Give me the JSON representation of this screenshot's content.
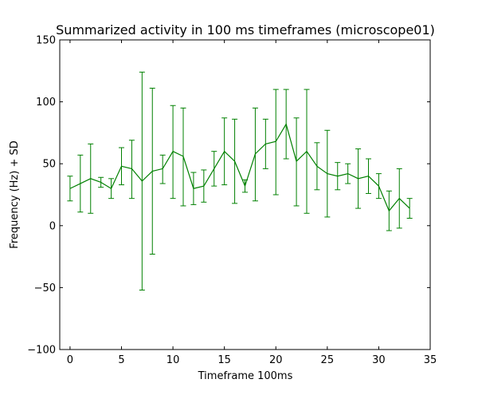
{
  "chart_data": {
    "type": "line",
    "title": "Summarized activity in 100 ms timeframes (microscope01)",
    "xlabel": "Timeframe 100ms",
    "ylabel": "Frequency (Hz) + SD",
    "xlim": [
      -1,
      35
    ],
    "ylim": [
      -100,
      150
    ],
    "xticks": [
      0,
      5,
      10,
      15,
      20,
      25,
      30,
      35
    ],
    "yticks": [
      -100,
      -50,
      0,
      50,
      100,
      150
    ],
    "xtick_labels": [
      "0",
      "5",
      "10",
      "15",
      "20",
      "25",
      "30",
      "35"
    ],
    "ytick_labels": [
      "−100",
      "−50",
      "0",
      "50",
      "100",
      "150"
    ],
    "grid": false,
    "legend": "none",
    "series": [
      {
        "color": "#008000",
        "x": [
          0,
          1,
          2,
          3,
          4,
          5,
          6,
          7,
          8,
          9,
          10,
          11,
          12,
          13,
          14,
          15,
          16,
          17,
          18,
          19,
          20,
          21,
          22,
          23,
          24,
          25,
          26,
          27,
          28,
          29,
          30,
          31,
          32,
          33
        ],
        "y": [
          30,
          34,
          38,
          35,
          30,
          48,
          46,
          36,
          44,
          46,
          60,
          56,
          30,
          32,
          46,
          60,
          52,
          32,
          58,
          66,
          68,
          82,
          52,
          60,
          48,
          42,
          40,
          42,
          38,
          40,
          32,
          12,
          22,
          14
        ],
        "yerr_upper": [
          40,
          57,
          66,
          39,
          38,
          63,
          69,
          124,
          111,
          57,
          97,
          95,
          43,
          45,
          60,
          87,
          86,
          37,
          95,
          86,
          110,
          110,
          87,
          110,
          67,
          77,
          51,
          50,
          62,
          54,
          42,
          28,
          46,
          22
        ],
        "yerr_lower": [
          20,
          11,
          10,
          31,
          22,
          33,
          22,
          -52,
          -23,
          34,
          22,
          16,
          17,
          19,
          32,
          33,
          18,
          27,
          20,
          46,
          25,
          54,
          16,
          10,
          29,
          7,
          29,
          34,
          14,
          26,
          22,
          -4,
          -2,
          6
        ]
      }
    ]
  }
}
